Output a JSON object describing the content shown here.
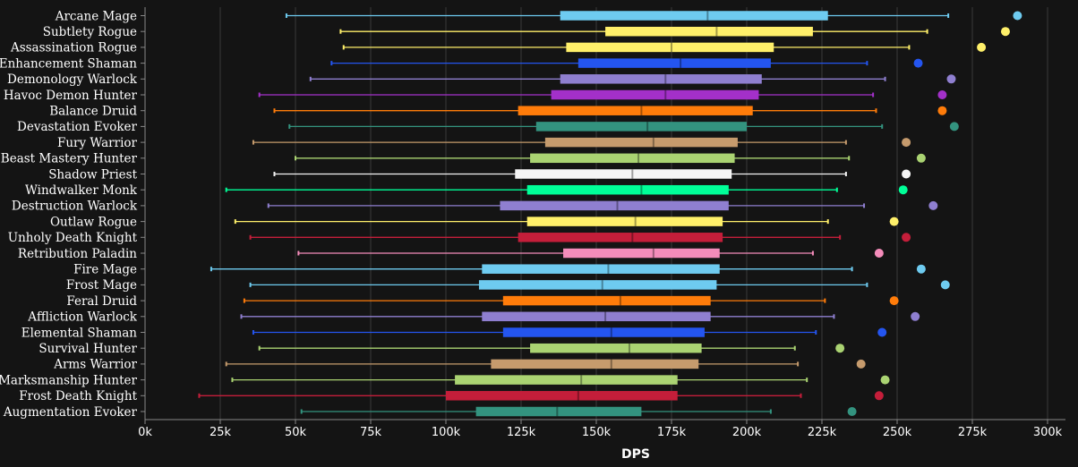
{
  "chart_data": {
    "type": "boxplot",
    "title": "",
    "xlabel": "DPS",
    "ylabel": "",
    "xlim": [
      0,
      305000
    ],
    "xticks": [
      0,
      25000,
      50000,
      75000,
      100000,
      125000,
      150000,
      175000,
      200000,
      225000,
      250000,
      275000,
      300000
    ],
    "xtick_labels": [
      "0k",
      "25k",
      "50k",
      "75k",
      "100k",
      "125k",
      "150k",
      "175k",
      "200k",
      "225k",
      "250k",
      "275k",
      "300k"
    ],
    "grid": "vertical",
    "series": [
      {
        "name": "Arcane Mage",
        "color": "#6ecbf0",
        "min": 47000,
        "q1": 138000,
        "median": 187000,
        "q3": 227000,
        "max": 267000,
        "top": 290000
      },
      {
        "name": "Subtlety Rogue",
        "color": "#fff06a",
        "min": 65000,
        "q1": 153000,
        "median": 190000,
        "q3": 222000,
        "max": 260000,
        "top": 286000
      },
      {
        "name": "Assassination Rogue",
        "color": "#fff06a",
        "min": 66000,
        "q1": 140000,
        "median": 175000,
        "q3": 209000,
        "max": 254000,
        "top": 278000
      },
      {
        "name": "Enhancement Shaman",
        "color": "#2455f0",
        "min": 62000,
        "q1": 144000,
        "median": 178000,
        "q3": 208000,
        "max": 240000,
        "top": 257000
      },
      {
        "name": "Demonology Warlock",
        "color": "#8f7fd0",
        "min": 55000,
        "q1": 138000,
        "median": 173000,
        "q3": 205000,
        "max": 246000,
        "top": 268000
      },
      {
        "name": "Havoc Demon Hunter",
        "color": "#a330c9",
        "min": 38000,
        "q1": 135000,
        "median": 173000,
        "q3": 204000,
        "max": 242000,
        "top": 265000
      },
      {
        "name": "Balance Druid",
        "color": "#ff7c0a",
        "min": 43000,
        "q1": 124000,
        "median": 165000,
        "q3": 202000,
        "max": 243000,
        "top": 265000
      },
      {
        "name": "Devastation Evoker",
        "color": "#33937f",
        "min": 48000,
        "q1": 130000,
        "median": 167000,
        "q3": 200000,
        "max": 245000,
        "top": 269000
      },
      {
        "name": "Fury Warrior",
        "color": "#c69b6d",
        "min": 36000,
        "q1": 133000,
        "median": 169000,
        "q3": 197000,
        "max": 233000,
        "top": 253000
      },
      {
        "name": "Beast Mastery Hunter",
        "color": "#aad372",
        "min": 50000,
        "q1": 128000,
        "median": 164000,
        "q3": 196000,
        "max": 234000,
        "top": 258000
      },
      {
        "name": "Shadow Priest",
        "color": "#f5f5f5",
        "min": 43000,
        "q1": 123000,
        "median": 162000,
        "q3": 195000,
        "max": 233000,
        "top": 253000
      },
      {
        "name": "Windwalker Monk",
        "color": "#00ff98",
        "min": 27000,
        "q1": 127000,
        "median": 165000,
        "q3": 194000,
        "max": 230000,
        "top": 252000
      },
      {
        "name": "Destruction Warlock",
        "color": "#8f7fd0",
        "min": 41000,
        "q1": 118000,
        "median": 157000,
        "q3": 194000,
        "max": 239000,
        "top": 262000
      },
      {
        "name": "Outlaw Rogue",
        "color": "#fff06a",
        "min": 30000,
        "q1": 127000,
        "median": 163000,
        "q3": 192000,
        "max": 227000,
        "top": 249000
      },
      {
        "name": "Unholy Death Knight",
        "color": "#c41e3a",
        "min": 35000,
        "q1": 124000,
        "median": 162000,
        "q3": 192000,
        "max": 231000,
        "top": 253000
      },
      {
        "name": "Retribution Paladin",
        "color": "#f48cba",
        "min": 51000,
        "q1": 139000,
        "median": 169000,
        "q3": 191000,
        "max": 222000,
        "top": 244000
      },
      {
        "name": "Fire Mage",
        "color": "#6ecbf0",
        "min": 22000,
        "q1": 112000,
        "median": 154000,
        "q3": 191000,
        "max": 235000,
        "top": 258000
      },
      {
        "name": "Frost Mage",
        "color": "#6ecbf0",
        "min": 35000,
        "q1": 111000,
        "median": 152000,
        "q3": 190000,
        "max": 240000,
        "top": 266000
      },
      {
        "name": "Feral Druid",
        "color": "#ff7c0a",
        "min": 33000,
        "q1": 119000,
        "median": 158000,
        "q3": 188000,
        "max": 226000,
        "top": 249000
      },
      {
        "name": "Affliction Warlock",
        "color": "#8f7fd0",
        "min": 32000,
        "q1": 112000,
        "median": 153000,
        "q3": 188000,
        "max": 229000,
        "top": 256000
      },
      {
        "name": "Elemental Shaman",
        "color": "#2455f0",
        "min": 36000,
        "q1": 119000,
        "median": 155000,
        "q3": 186000,
        "max": 223000,
        "top": 245000
      },
      {
        "name": "Survival Hunter",
        "color": "#aad372",
        "min": 38000,
        "q1": 128000,
        "median": 161000,
        "q3": 185000,
        "max": 216000,
        "top": 231000
      },
      {
        "name": "Arms Warrior",
        "color": "#c69b6d",
        "min": 27000,
        "q1": 115000,
        "median": 155000,
        "q3": 184000,
        "max": 217000,
        "top": 238000
      },
      {
        "name": "Marksmanship Hunter",
        "color": "#aad372",
        "min": 29000,
        "q1": 103000,
        "median": 145000,
        "q3": 177000,
        "max": 220000,
        "top": 246000
      },
      {
        "name": "Frost Death Knight",
        "color": "#c41e3a",
        "min": 18000,
        "q1": 100000,
        "median": 144000,
        "q3": 177000,
        "max": 218000,
        "top": 244000
      },
      {
        "name": "Augmentation Evoker",
        "color": "#33937f",
        "min": 52000,
        "q1": 110000,
        "median": 137000,
        "q3": 165000,
        "max": 208000,
        "top": 235000
      }
    ]
  }
}
